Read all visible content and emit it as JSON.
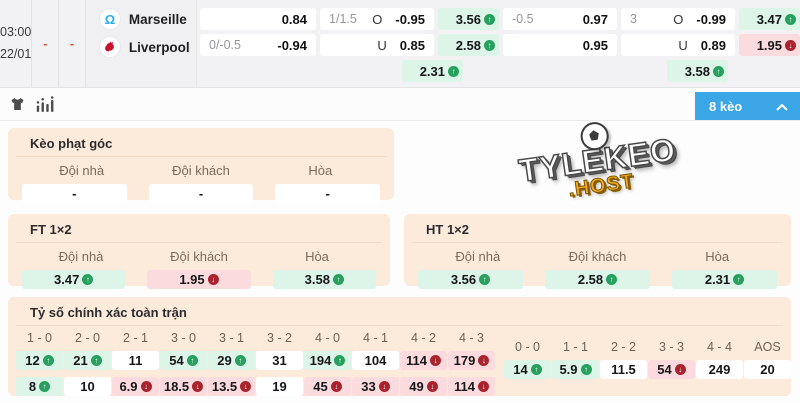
{
  "match": {
    "time": "03:00",
    "date": "22/01",
    "score_home": "-",
    "score_away": "-",
    "home_team": "Marseille",
    "away_team": "Liverpool",
    "odds": {
      "hdp_ft": {
        "row1": {
          "price": "0.84"
        },
        "row2": {
          "line": "0/-0.5",
          "price": "-0.94"
        }
      },
      "ou_ft": {
        "row1": {
          "line": "1/1.5",
          "side": "O",
          "price": "-0.95"
        },
        "row2": {
          "side": "U",
          "price": "0.85"
        }
      },
      "x12_left": [
        {
          "value": "3.56",
          "trend": "up"
        },
        {
          "value": "2.58",
          "trend": "up"
        },
        {
          "value": "2.31",
          "trend": "up"
        }
      ],
      "hdp_ht": {
        "row1": {
          "line": "-0.5",
          "price": "0.97"
        },
        "row2": {
          "price": "0.95"
        }
      },
      "ou_ht": {
        "row1": {
          "line": "3",
          "side": "O",
          "price": "-0.99"
        },
        "row2": {
          "side": "U",
          "price": "0.89"
        }
      },
      "x12_right": [
        {
          "value": "3.47",
          "trend": "up"
        },
        {
          "value": "1.95",
          "trend": "down"
        },
        {
          "value": "3.58",
          "trend": "up"
        }
      ]
    }
  },
  "toolbar": {
    "more_label": "8 kèo",
    "icons": [
      "jersey-icon",
      "stats-icon",
      "chevron-up-icon"
    ]
  },
  "sections": {
    "corner": {
      "title": "Kèo phạt góc",
      "headers": [
        "Đội nhà",
        "Đội khách",
        "Hòa"
      ],
      "values": [
        {
          "value": "-",
          "trend": "flat"
        },
        {
          "value": "-",
          "trend": "flat"
        },
        {
          "value": "-",
          "trend": "flat"
        }
      ]
    },
    "ft_1x2": {
      "title": "FT 1×2",
      "headers": [
        "Đội nhà",
        "Đội khách",
        "Hòa"
      ],
      "values": [
        {
          "value": "3.47",
          "trend": "up"
        },
        {
          "value": "1.95",
          "trend": "down"
        },
        {
          "value": "3.58",
          "trend": "up"
        }
      ]
    },
    "ht_1x2": {
      "title": "HT 1×2",
      "headers": [
        "Đội nhà",
        "Đội khách",
        "Hòa"
      ],
      "values": [
        {
          "value": "3.56",
          "trend": "up"
        },
        {
          "value": "2.58",
          "trend": "up"
        },
        {
          "value": "2.31",
          "trend": "up"
        }
      ]
    },
    "correct_score": {
      "title": "Tỷ số chính xác toàn trận",
      "main": {
        "headers": [
          "1 - 0",
          "2 - 0",
          "2 - 1",
          "3 - 0",
          "3 - 1",
          "3 - 2",
          "4 - 0",
          "4 - 1",
          "4 - 2",
          "4 - 3"
        ],
        "row1": [
          {
            "value": "12",
            "trend": "up"
          },
          {
            "value": "21",
            "trend": "up"
          },
          {
            "value": "11",
            "trend": "flat"
          },
          {
            "value": "54",
            "trend": "up"
          },
          {
            "value": "29",
            "trend": "up"
          },
          {
            "value": "31",
            "trend": "flat"
          },
          {
            "value": "194",
            "trend": "up"
          },
          {
            "value": "104",
            "trend": "flat"
          },
          {
            "value": "114",
            "trend": "down"
          },
          {
            "value": "179",
            "trend": "down"
          }
        ],
        "row2": [
          {
            "value": "8",
            "trend": "up"
          },
          {
            "value": "10",
            "trend": "flat"
          },
          {
            "value": "6.9",
            "trend": "down"
          },
          {
            "value": "18.5",
            "trend": "down"
          },
          {
            "value": "13.5",
            "trend": "down"
          },
          {
            "value": "19",
            "trend": "flat"
          },
          {
            "value": "45",
            "trend": "down"
          },
          {
            "value": "33",
            "trend": "down"
          },
          {
            "value": "49",
            "trend": "down"
          },
          {
            "value": "114",
            "trend": "down"
          }
        ]
      },
      "draws": {
        "headers": [
          "0 - 0",
          "1 - 1",
          "2 - 2",
          "3 - 3",
          "4 - 4",
          "AOS"
        ],
        "values": [
          {
            "value": "14",
            "trend": "up"
          },
          {
            "value": "5.9",
            "trend": "up"
          },
          {
            "value": "11.5",
            "trend": "flat"
          },
          {
            "value": "54",
            "trend": "down"
          },
          {
            "value": "249",
            "trend": "flat"
          },
          {
            "value": "20",
            "trend": "flat"
          }
        ]
      }
    }
  },
  "watermark": {
    "brand": "TYLEKEO",
    "suffix": ".HOST"
  },
  "colors": {
    "accent_blue": "#3AA6E5",
    "up_green": "#27A05D",
    "up_bg": "#DCF5E8",
    "down_red": "#A8232E",
    "down_bg": "#FBDBDD",
    "section_bg": "#FCEBDB"
  }
}
